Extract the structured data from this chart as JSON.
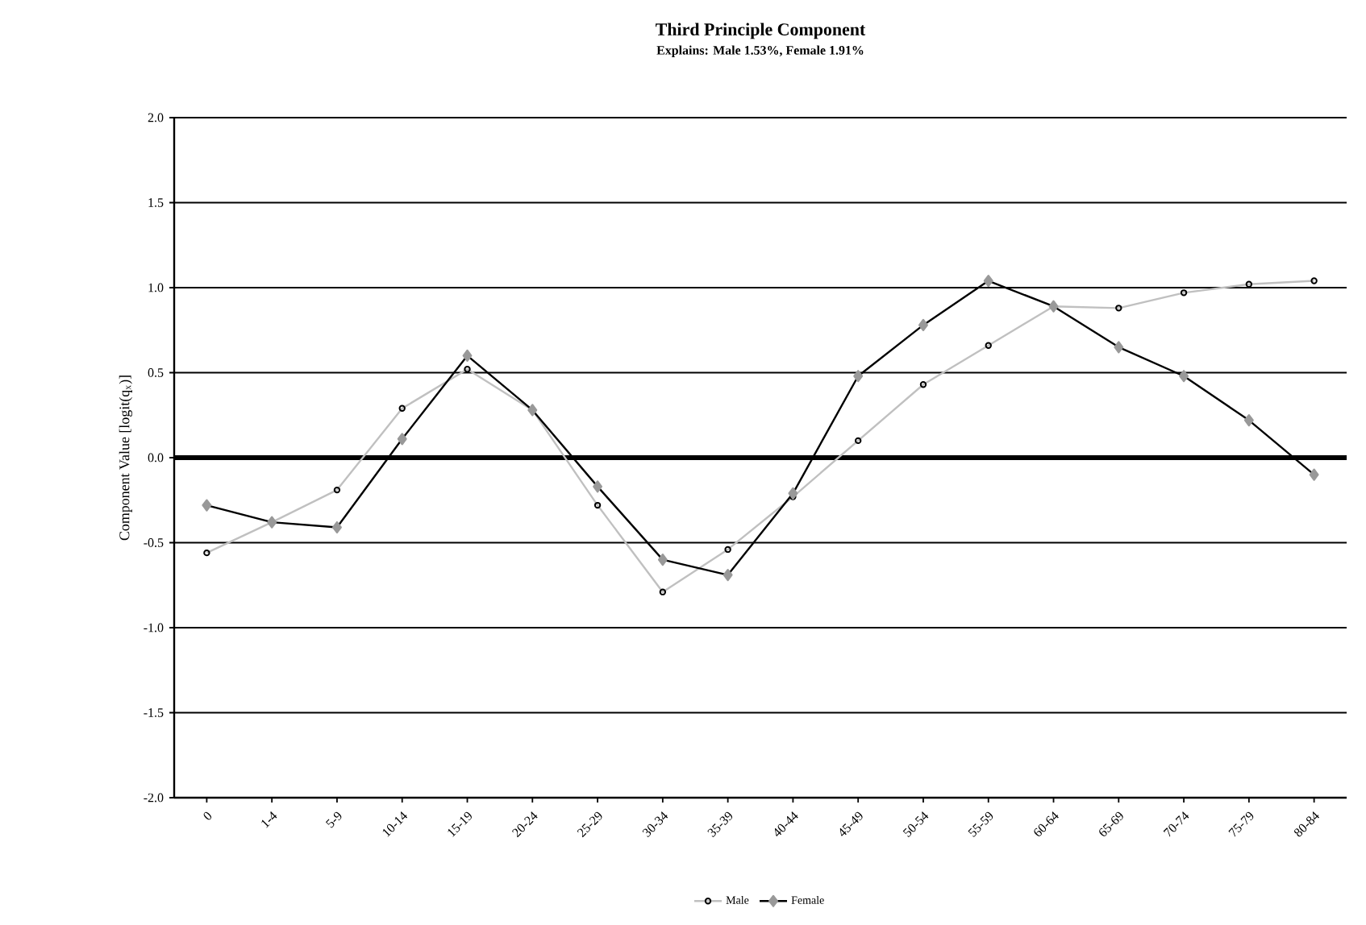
{
  "chart_data": {
    "type": "line",
    "title": "Third Principle Component",
    "subtitle": "Explains: Male 1.53%, Female 1.91%",
    "ylabel": "Component Value [logit(q$_{x}$)]",
    "categories": [
      "0",
      "1-4",
      "5-9",
      "10-14",
      "15-19",
      "20-24",
      "25-29",
      "30-34",
      "35-39",
      "40-44",
      "45-49",
      "50-54",
      "55-59",
      "60-64",
      "65-69",
      "70-74",
      "75-79",
      "80-84"
    ],
    "series": [
      {
        "name": "Male",
        "color": "#c0c0c0",
        "marker": "circle",
        "values": [
          -0.56,
          -0.38,
          -0.19,
          0.29,
          0.52,
          0.28,
          -0.28,
          -0.79,
          -0.54,
          -0.23,
          0.1,
          0.43,
          0.66,
          0.89,
          0.88,
          0.97,
          1.02,
          1.04
        ]
      },
      {
        "name": "Female",
        "color": "#000000",
        "marker": "diamond",
        "values": [
          -0.28,
          -0.38,
          -0.41,
          0.11,
          0.6,
          0.28,
          -0.17,
          -0.6,
          -0.69,
          -0.21,
          0.48,
          0.78,
          1.04,
          0.89,
          0.65,
          0.48,
          0.22,
          -0.1
        ]
      }
    ],
    "ylim": [
      -2.0,
      2.0
    ],
    "yticks": [
      {
        "value": -2,
        "label": "-2.0"
      },
      {
        "value": -1.5,
        "label": "-1.5"
      },
      {
        "value": -1,
        "label": "-1.0"
      },
      {
        "value": -0.5,
        "label": "-0.5"
      },
      {
        "value": 0,
        "label": "0.0"
      },
      {
        "value": 0.5,
        "label": "0.5"
      },
      {
        "value": 1,
        "label": "1.0"
      },
      {
        "value": 1.5,
        "label": "1.5"
      },
      {
        "value": 2,
        "label": "2.0"
      }
    ],
    "grid": "y",
    "legend": "bottom",
    "line_style": "solid",
    "ref_lines": [
      {
        "axis": "y",
        "value": 0,
        "color": "#000000"
      }
    ]
  }
}
